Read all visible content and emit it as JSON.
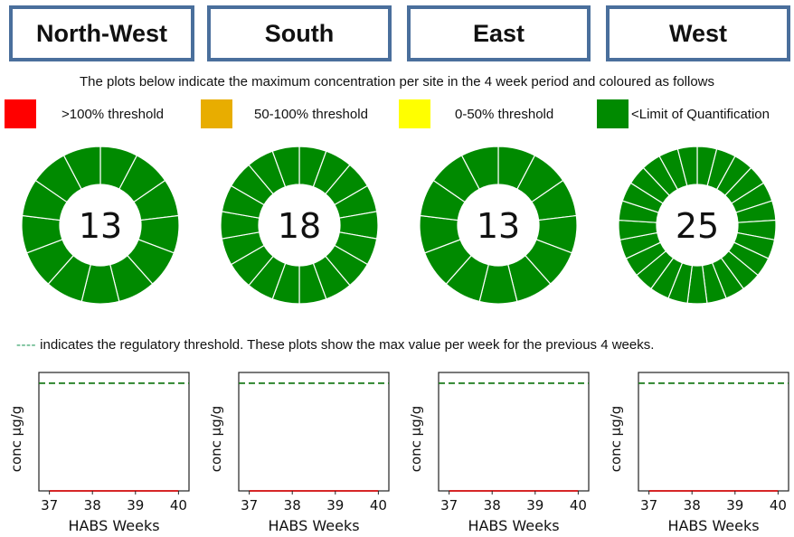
{
  "regions": [
    "North-West",
    "South",
    "East",
    "West"
  ],
  "intro_text": "The plots below indicate the maximum concentration per site in the 4 week period and coloured as follows",
  "legend": [
    {
      "label": ">100% threshold",
      "color": "#ff0000"
    },
    {
      "label": "50-100% threshold",
      "color": "#e8ad00"
    },
    {
      "label": "0-50% threshold",
      "color": "#ffff00"
    },
    {
      "label": "<Limit of Quantification",
      "color": "#008a00"
    }
  ],
  "note": {
    "dash": "----",
    "text": " indicates the regulatory threshold. These plots show the max value per week for the previous 4 weeks."
  },
  "chart_data": [
    {
      "type": "pie",
      "region": "North-West",
      "center_label": "13",
      "site_count": 13,
      "segment_color": "#008a00",
      "category": "<Limit of Quantification"
    },
    {
      "type": "pie",
      "region": "South",
      "center_label": "18",
      "site_count": 18,
      "segment_color": "#008a00",
      "category": "<Limit of Quantification"
    },
    {
      "type": "pie",
      "region": "East",
      "center_label": "13",
      "site_count": 13,
      "segment_color": "#008a00",
      "category": "<Limit of Quantification"
    },
    {
      "type": "pie",
      "region": "West",
      "center_label": "25",
      "site_count": 25,
      "segment_color": "#008a00",
      "category": "<Limit of Quantification"
    },
    {
      "type": "line",
      "region": "North-West",
      "xlabel": "HABS Weeks",
      "ylabel": "conc µg/g",
      "x": [
        37,
        38,
        39,
        40
      ],
      "xticks": [
        "37",
        "38",
        "39",
        "40"
      ],
      "ylim": [
        0,
        1.1
      ],
      "series": [
        {
          "values": [
            0,
            0,
            0,
            0
          ],
          "color": "#d62728"
        }
      ],
      "threshold": {
        "value": 1.0,
        "color": "#1a7a1a",
        "style": "dashed"
      }
    },
    {
      "type": "line",
      "region": "South",
      "xlabel": "HABS Weeks",
      "ylabel": "conc µg/g",
      "x": [
        37,
        38,
        39,
        40
      ],
      "xticks": [
        "37",
        "38",
        "39",
        "40"
      ],
      "ylim": [
        0,
        1.1
      ],
      "series": [
        {
          "values": [
            0,
            0,
            0,
            0
          ],
          "color": "#d62728"
        }
      ],
      "threshold": {
        "value": 1.0,
        "color": "#1a7a1a",
        "style": "dashed"
      }
    },
    {
      "type": "line",
      "region": "East",
      "xlabel": "HABS Weeks",
      "ylabel": "conc µg/g",
      "x": [
        37,
        38,
        39,
        40
      ],
      "xticks": [
        "37",
        "38",
        "39",
        "40"
      ],
      "ylim": [
        0,
        1.1
      ],
      "series": [
        {
          "values": [
            0,
            0,
            0,
            0
          ],
          "color": "#d62728"
        }
      ],
      "threshold": {
        "value": 1.0,
        "color": "#1a7a1a",
        "style": "dashed"
      }
    },
    {
      "type": "line",
      "region": "West",
      "xlabel": "HABS Weeks",
      "ylabel": "conc µg/g",
      "x": [
        37,
        38,
        39,
        40
      ],
      "xticks": [
        "37",
        "38",
        "39",
        "40"
      ],
      "ylim": [
        0,
        1.1
      ],
      "series": [
        {
          "values": [
            0,
            0,
            0,
            0
          ],
          "color": "#d62728"
        }
      ],
      "threshold": {
        "value": 1.0,
        "color": "#1a7a1a",
        "style": "dashed"
      }
    }
  ]
}
